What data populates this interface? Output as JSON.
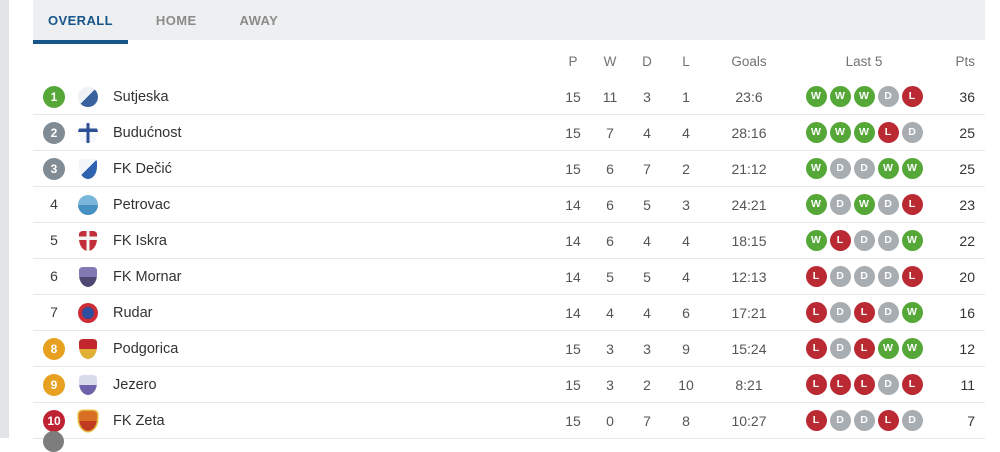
{
  "tabs": [
    {
      "label": "OVERALL",
      "active": true
    },
    {
      "label": "HOME",
      "active": false
    },
    {
      "label": "AWAY",
      "active": false
    }
  ],
  "colors": {
    "accent": "#17558b",
    "win": "#55a738",
    "draw": "#a8adb2",
    "loss": "#ba2a33",
    "rank_gray": "#808b94",
    "rank_orange": "#e7a01f",
    "rank_red": "#bf2333"
  },
  "table": {
    "headers": {
      "p": "P",
      "w": "W",
      "d": "D",
      "l": "L",
      "goals": "Goals",
      "last5": "Last 5",
      "pts": "Pts"
    },
    "rows": [
      {
        "rank": 1,
        "rank_style": "rk-green",
        "team": "Sutjeska",
        "p": 15,
        "w": 11,
        "d": 3,
        "l": 1,
        "goals": "23:6",
        "last5": [
          "W",
          "W",
          "W",
          "D",
          "L"
        ],
        "pts": 36,
        "badge": {
          "shape": "circle",
          "style": "split-diag",
          "colors": [
            "#eef2f6",
            "#39629c"
          ]
        }
      },
      {
        "rank": 2,
        "rank_style": "rk-gray",
        "team": "Budućnost",
        "p": 15,
        "w": 7,
        "d": 4,
        "l": 4,
        "goals": "28:16",
        "last5": [
          "W",
          "W",
          "W",
          "L",
          "D"
        ],
        "pts": 25,
        "badge": {
          "shape": "circle",
          "style": "cross",
          "colors": [
            "#f6f8fa",
            "#2d4f97"
          ]
        }
      },
      {
        "rank": 3,
        "rank_style": "rk-gray",
        "team": "FK Dečić",
        "p": 15,
        "w": 6,
        "d": 7,
        "l": 2,
        "goals": "21:12",
        "last5": [
          "W",
          "D",
          "D",
          "W",
          "W"
        ],
        "pts": 25,
        "badge": {
          "shape": "shield",
          "style": "split-diag",
          "colors": [
            "#f2f5f9",
            "#2f62ae"
          ]
        }
      },
      {
        "rank": 4,
        "rank_style": "rk-plain",
        "team": "Petrovac",
        "p": 14,
        "w": 6,
        "d": 5,
        "l": 3,
        "goals": "24:21",
        "last5": [
          "W",
          "D",
          "W",
          "D",
          "L"
        ],
        "pts": 23,
        "badge": {
          "shape": "circle",
          "style": "split-h",
          "colors": [
            "#79b6dc",
            "#4690c2"
          ]
        }
      },
      {
        "rank": 5,
        "rank_style": "rk-plain",
        "team": "FK Iskra",
        "p": 14,
        "w": 6,
        "d": 4,
        "l": 4,
        "goals": "18:15",
        "last5": [
          "W",
          "L",
          "D",
          "D",
          "W"
        ],
        "pts": 22,
        "badge": {
          "shape": "shield",
          "style": "cross",
          "colors": [
            "#c22f38",
            "#f4f4f4"
          ]
        }
      },
      {
        "rank": 6,
        "rank_style": "rk-plain",
        "team": "FK Mornar",
        "p": 14,
        "w": 5,
        "d": 5,
        "l": 4,
        "goals": "12:13",
        "last5": [
          "L",
          "D",
          "D",
          "D",
          "L"
        ],
        "pts": 20,
        "badge": {
          "shape": "shield",
          "style": "split-h",
          "colors": [
            "#8278b4",
            "#4e4870"
          ]
        }
      },
      {
        "rank": 7,
        "rank_style": "rk-plain",
        "team": "Rudar",
        "p": 14,
        "w": 4,
        "d": 4,
        "l": 6,
        "goals": "17:21",
        "last5": [
          "L",
          "D",
          "L",
          "D",
          "W"
        ],
        "pts": 16,
        "badge": {
          "shape": "circle",
          "style": "ring",
          "colors": [
            "#cd2b35",
            "#2c4f9e"
          ]
        }
      },
      {
        "rank": 8,
        "rank_style": "rk-orange",
        "team": "Podgorica",
        "p": 15,
        "w": 3,
        "d": 3,
        "l": 9,
        "goals": "15:24",
        "last5": [
          "L",
          "D",
          "L",
          "W",
          "W"
        ],
        "pts": 12,
        "badge": {
          "shape": "shield",
          "style": "split-h",
          "colors": [
            "#c1272d",
            "#e0af35"
          ]
        }
      },
      {
        "rank": 9,
        "rank_style": "rk-orange",
        "team": "Jezero",
        "p": 15,
        "w": 3,
        "d": 2,
        "l": 10,
        "goals": "8:21",
        "last5": [
          "L",
          "L",
          "L",
          "D",
          "L"
        ],
        "pts": 11,
        "badge": {
          "shape": "shield",
          "style": "split-h",
          "colors": [
            "#d8dbea",
            "#6f62aa"
          ]
        }
      },
      {
        "rank": 10,
        "rank_style": "rk-red",
        "team": "FK Zeta",
        "p": 15,
        "w": 0,
        "d": 7,
        "l": 8,
        "goals": "10:27",
        "last5": [
          "L",
          "D",
          "D",
          "L",
          "D"
        ],
        "pts": 7,
        "badge": {
          "shape": "shield",
          "style": "split-h",
          "colors": [
            "#d96f22",
            "#bf3a1e"
          ],
          "border": "#e5b83c"
        }
      }
    ]
  }
}
